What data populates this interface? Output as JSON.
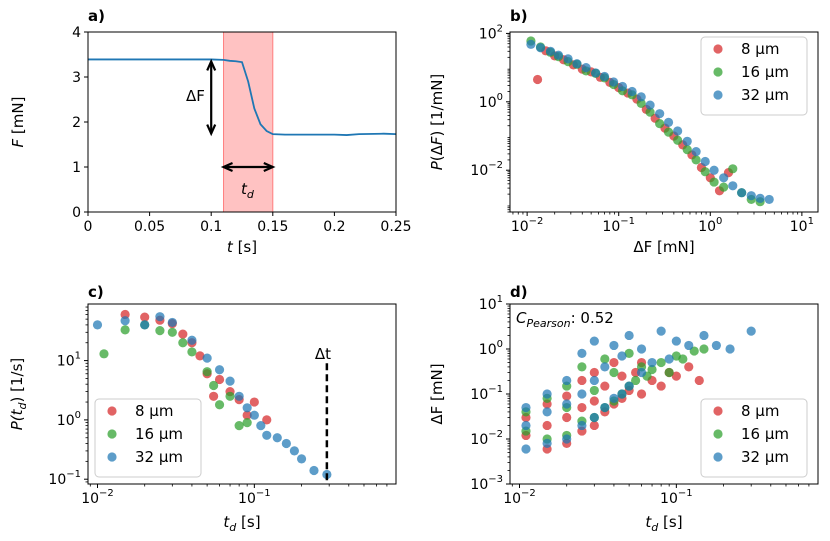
{
  "colors": {
    "series8": "#d62728",
    "series16": "#2ca02c",
    "series32": "#1f77b4",
    "shade": "#ff9999",
    "line": "#1f77b4"
  },
  "chart_data": [
    {
      "id": "a",
      "panel_label": "a)",
      "type": "line",
      "xlabel": "t [s]",
      "ylabel": "F [mN]",
      "xlim": [
        0,
        0.25
      ],
      "ylim": [
        0,
        4
      ],
      "xticks": [
        0,
        0.05,
        0.1,
        0.15,
        0.2,
        0.25
      ],
      "xtick_labels": [
        "0",
        "0.05",
        "0.1",
        "0.15",
        "0.2",
        "0.25"
      ],
      "yticks": [
        0,
        1,
        2,
        3,
        4
      ],
      "ytick_labels": [
        "0",
        "1",
        "2",
        "3",
        "4"
      ],
      "x": [
        0,
        0.02,
        0.05,
        0.08,
        0.1,
        0.11,
        0.115,
        0.12,
        0.125,
        0.13,
        0.135,
        0.14,
        0.145,
        0.15,
        0.16,
        0.18,
        0.2,
        0.21,
        0.22,
        0.24,
        0.25
      ],
      "y": [
        3.39,
        3.39,
        3.39,
        3.39,
        3.39,
        3.38,
        3.36,
        3.35,
        3.33,
        2.9,
        2.3,
        1.95,
        1.8,
        1.73,
        1.72,
        1.72,
        1.72,
        1.71,
        1.73,
        1.74,
        1.73
      ],
      "shaded_region": [
        0.11,
        0.15
      ],
      "annotations": {
        "delta_f": "ΔF",
        "t_d": "t",
        "t_d_sub": "d"
      },
      "delta_f_arrow": {
        "x": 0.1,
        "y_top": 3.39,
        "y_bottom": 1.72
      },
      "t_d_arrow": {
        "y": 1.0,
        "x_start": 0.11,
        "x_end": 0.15
      }
    },
    {
      "id": "b",
      "panel_label": "b)",
      "type": "scatter",
      "xscale": "log",
      "yscale": "log",
      "xlabel": "ΔF [mN]",
      "ylabel": "P(ΔF) [1/mN]",
      "xlim": [
        0.0065,
        15
      ],
      "ylim": [
        0.0006,
        110
      ],
      "xticks": [
        0.01,
        0.1,
        1,
        10
      ],
      "xtick_labels": [
        "10^-2",
        "10^-1",
        "10^0",
        "10^1"
      ],
      "yticks": [
        0.01,
        1,
        100
      ],
      "ytick_labels": [
        "10^-2",
        "10^0",
        "10^2"
      ],
      "legend": "top-right",
      "series": [
        {
          "name": "8 µm",
          "x": [
            0.013,
            0.016,
            0.02,
            0.025,
            0.032,
            0.04,
            0.05,
            0.063,
            0.08,
            0.1,
            0.126,
            0.158,
            0.2,
            0.25,
            0.32,
            0.4,
            0.5,
            0.63,
            0.8,
            1.0,
            1.26,
            1.58
          ],
          "y": [
            4.5,
            31,
            22,
            17,
            12,
            9,
            7.5,
            5.2,
            3.7,
            2.6,
            1.8,
            1.2,
            0.6,
            0.33,
            0.17,
            0.1,
            0.055,
            0.028,
            0.012,
            0.006,
            0.0025,
            0.0085
          ]
        },
        {
          "name": "16 µm",
          "x": [
            0.011,
            0.014,
            0.018,
            0.022,
            0.028,
            0.035,
            0.044,
            0.056,
            0.07,
            0.088,
            0.11,
            0.14,
            0.176,
            0.22,
            0.28,
            0.35,
            0.44,
            0.56,
            0.7,
            0.88,
            1.1,
            1.4,
            1.76,
            2.2,
            2.8,
            3.5
          ],
          "y": [
            60,
            40,
            28,
            21,
            15,
            12.5,
            8,
            6.8,
            5,
            3.2,
            2.1,
            1.6,
            0.9,
            0.5,
            0.23,
            0.13,
            0.075,
            0.04,
            0.02,
            0.009,
            0.0045,
            0.0032,
            0.011,
            0.0022,
            0.0014,
            0.0012
          ]
        },
        {
          "name": "32 µm",
          "x": [
            0.011,
            0.014,
            0.018,
            0.022,
            0.028,
            0.035,
            0.044,
            0.056,
            0.07,
            0.088,
            0.11,
            0.14,
            0.176,
            0.22,
            0.28,
            0.35,
            0.44,
            0.56,
            0.7,
            0.88,
            1.1,
            1.4,
            1.76,
            2.2,
            2.8,
            3.5,
            4.4
          ],
          "y": [
            48,
            38,
            30,
            23,
            18,
            13,
            10,
            7,
            5.5,
            3.8,
            2.8,
            2.0,
            1.4,
            0.8,
            0.45,
            0.25,
            0.14,
            0.07,
            0.035,
            0.018,
            0.01,
            0.006,
            0.0035,
            0.0022,
            0.0018,
            0.0015,
            0.0014
          ]
        }
      ]
    },
    {
      "id": "c",
      "panel_label": "c)",
      "type": "scatter",
      "xscale": "log",
      "yscale": "log",
      "xlabel": "t",
      "xlabel_sub": "d",
      "xlabel_unit": " [s]",
      "ylabel": "P(t",
      "ylabel_sub": "d",
      "ylabel_unit": ") [1/s]",
      "xlim": [
        0.0087,
        0.8
      ],
      "ylim": [
        0.083,
        90
      ],
      "xticks": [
        0.01,
        0.1
      ],
      "xtick_labels": [
        "10^-2",
        "10^-1"
      ],
      "yticks": [
        0.1,
        1,
        10
      ],
      "ytick_labels": [
        "10^-1",
        "10^0",
        "10^1"
      ],
      "legend": "lower-left",
      "vline": {
        "x": 0.29,
        "y_from": 0.083,
        "y_to": 9,
        "label": "Δt"
      },
      "series": [
        {
          "name": "8 µm",
          "x": [
            0.015,
            0.02,
            0.025,
            0.03,
            0.035,
            0.04,
            0.045,
            0.05,
            0.055,
            0.06,
            0.07,
            0.08,
            0.09,
            0.1,
            0.12
          ],
          "y": [
            60,
            54,
            48,
            42,
            28,
            20,
            12,
            6,
            2.5,
            4.8,
            3,
            2.2,
            1.2,
            2,
            1
          ]
        },
        {
          "name": "16 µm",
          "x": [
            0.011,
            0.015,
            0.02,
            0.025,
            0.03,
            0.035,
            0.04,
            0.05,
            0.055,
            0.06,
            0.07,
            0.08,
            0.09
          ],
          "y": [
            13,
            33,
            40,
            32,
            30,
            20,
            14,
            6.5,
            3.8,
            1.8,
            2.5,
            0.8,
            0.9
          ]
        },
        {
          "name": "32 µm",
          "x": [
            0.01,
            0.015,
            0.02,
            0.025,
            0.03,
            0.04,
            0.05,
            0.06,
            0.07,
            0.08,
            0.09,
            0.1,
            0.11,
            0.12,
            0.14,
            0.16,
            0.18,
            0.2,
            0.24,
            0.29
          ],
          "y": [
            40,
            47,
            40,
            55,
            44,
            22,
            11,
            7,
            4.5,
            2.5,
            1.6,
            1.2,
            0.8,
            0.55,
            0.5,
            0.4,
            0.3,
            0.22,
            0.14,
            0.12
          ]
        }
      ]
    },
    {
      "id": "d",
      "panel_label": "d)",
      "type": "scatter",
      "xscale": "log",
      "yscale": "log",
      "xlabel": "t",
      "xlabel_sub": "d",
      "xlabel_unit": " [s]",
      "ylabel": "ΔF [mN]",
      "xlim": [
        0.0087,
        0.8
      ],
      "ylim": [
        0.001,
        10
      ],
      "xticks": [
        0.01,
        0.1
      ],
      "xtick_labels": [
        "10^-2",
        "10^-1"
      ],
      "yticks": [
        0.001,
        0.01,
        0.1,
        1,
        10
      ],
      "ytick_labels": [
        "10^-3",
        "10^-2",
        "10^-1",
        "10^0",
        "10^1"
      ],
      "annotation": {
        "text": "C",
        "sub": "Pearson",
        "value": ": 0.52"
      },
      "legend": "lower-right",
      "series": [
        {
          "name": "8 µm",
          "x": [
            0.011,
            0.011,
            0.015,
            0.015,
            0.015,
            0.02,
            0.02,
            0.02,
            0.025,
            0.025,
            0.025,
            0.03,
            0.03,
            0.03,
            0.035,
            0.035,
            0.04,
            0.04,
            0.045,
            0.045,
            0.05,
            0.055,
            0.06,
            0.06,
            0.07,
            0.08,
            0.09,
            0.1,
            0.12,
            0.14
          ],
          "y": [
            0.012,
            0.03,
            0.006,
            0.02,
            0.06,
            0.008,
            0.03,
            0.09,
            0.015,
            0.05,
            0.2,
            0.02,
            0.07,
            0.3,
            0.04,
            0.15,
            0.06,
            0.5,
            0.08,
            0.25,
            0.12,
            0.3,
            0.1,
            0.5,
            0.2,
            0.15,
            0.3,
            0.25,
            0.4,
            0.2
          ]
        },
        {
          "name": "16 µm",
          "x": [
            0.011,
            0.011,
            0.015,
            0.015,
            0.02,
            0.02,
            0.02,
            0.025,
            0.025,
            0.03,
            0.03,
            0.035,
            0.035,
            0.04,
            0.04,
            0.045,
            0.05,
            0.05,
            0.055,
            0.06,
            0.065,
            0.07,
            0.08,
            0.09,
            0.1,
            0.11,
            0.13,
            0.15
          ],
          "y": [
            0.015,
            0.04,
            0.01,
            0.08,
            0.012,
            0.05,
            0.15,
            0.025,
            0.4,
            0.03,
            0.12,
            0.05,
            0.6,
            0.07,
            0.3,
            0.1,
            0.15,
            0.8,
            0.2,
            0.4,
            0.25,
            0.35,
            0.5,
            0.3,
            0.7,
            0.6,
            0.9,
            1.0
          ]
        },
        {
          "name": "32 µm",
          "x": [
            0.011,
            0.011,
            0.011,
            0.015,
            0.015,
            0.015,
            0.02,
            0.02,
            0.02,
            0.025,
            0.025,
            0.025,
            0.03,
            0.03,
            0.03,
            0.035,
            0.035,
            0.04,
            0.04,
            0.045,
            0.045,
            0.05,
            0.05,
            0.06,
            0.06,
            0.07,
            0.08,
            0.09,
            0.1,
            0.12,
            0.15,
            0.18,
            0.22,
            0.3
          ],
          "y": [
            0.006,
            0.02,
            0.05,
            0.008,
            0.04,
            0.1,
            0.01,
            0.06,
            0.2,
            0.02,
            0.1,
            0.8,
            0.03,
            0.2,
            1.5,
            0.05,
            0.4,
            0.08,
            1.2,
            0.1,
            0.7,
            0.15,
            2.0,
            0.3,
            1.0,
            0.5,
            2.5,
            0.6,
            1.5,
            1.2,
            2.0,
            1.2,
            1.0,
            2.5
          ]
        }
      ]
    }
  ]
}
